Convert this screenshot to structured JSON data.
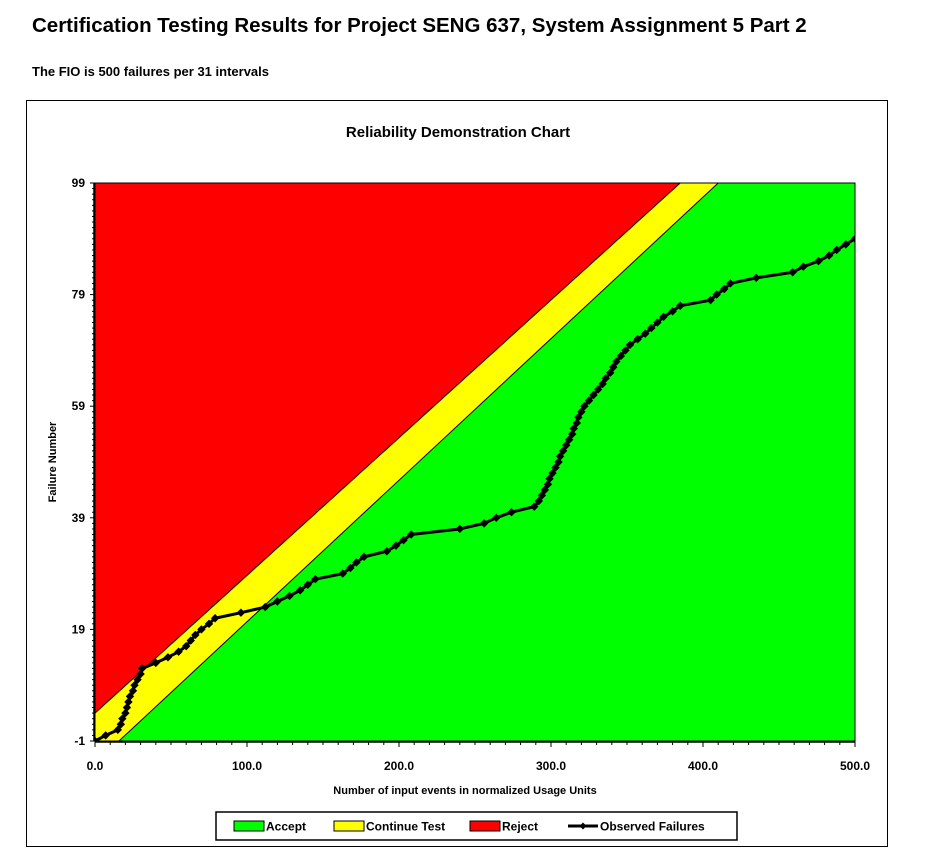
{
  "page": {
    "title": "Certification Testing Results for Project SENG 637, System Assignment 5 Part 2",
    "subtitle": "The FIO is 500 failures per 31 intervals"
  },
  "colors": {
    "reject": "#ff0000",
    "continue": "#ffff00",
    "accept": "#00ff00",
    "observed": "#000000"
  },
  "chart_data": {
    "type": "line",
    "title": "Reliability Demonstration Chart",
    "xlabel": "Number of input events in normalized Usage Units",
    "ylabel": "Failure Number",
    "xlim": [
      0,
      500
    ],
    "ylim": [
      -1,
      99
    ],
    "x_ticks": [
      {
        "value": 0,
        "label": "0.0"
      },
      {
        "value": 100,
        "label": "100.0"
      },
      {
        "value": 200,
        "label": "200.0"
      },
      {
        "value": 300,
        "label": "300.0"
      },
      {
        "value": 400,
        "label": "400.0"
      },
      {
        "value": 500,
        "label": "500.0"
      }
    ],
    "y_ticks": [
      {
        "value": -1,
        "label": "-1"
      },
      {
        "value": 19,
        "label": "19"
      },
      {
        "value": 39,
        "label": "39"
      },
      {
        "value": 59,
        "label": "59"
      },
      {
        "value": 79,
        "label": "79"
      },
      {
        "value": 99,
        "label": "99"
      }
    ],
    "regions": {
      "reject_boundary": [
        [
          0,
          4
        ],
        [
          385,
          99
        ]
      ],
      "accept_boundary": [
        [
          0,
          -5
        ],
        [
          410,
          99
        ]
      ]
    },
    "legend": {
      "placement": "bottom",
      "items": [
        {
          "label": "Accept",
          "color": "#00ff00",
          "kind": "box"
        },
        {
          "label": "Continue Test",
          "color": "#ffff00",
          "kind": "box"
        },
        {
          "label": "Reject",
          "color": "#ff0000",
          "kind": "box"
        },
        {
          "label": "Observed Failures",
          "color": "#000000",
          "kind": "line"
        }
      ]
    },
    "series": [
      {
        "name": "Observed Failures",
        "points": [
          [
            0,
            -1
          ],
          [
            7,
            0
          ],
          [
            15,
            1
          ],
          [
            17,
            2
          ],
          [
            18,
            3
          ],
          [
            20,
            4
          ],
          [
            21,
            5
          ],
          [
            22,
            6
          ],
          [
            23,
            7
          ],
          [
            25,
            8
          ],
          [
            26,
            9
          ],
          [
            28,
            10
          ],
          [
            30,
            11
          ],
          [
            31,
            12
          ],
          [
            40,
            13
          ],
          [
            48,
            14
          ],
          [
            55,
            15
          ],
          [
            60,
            16
          ],
          [
            63,
            17
          ],
          [
            66,
            18
          ],
          [
            70,
            19
          ],
          [
            75,
            20
          ],
          [
            79,
            21
          ],
          [
            96,
            22
          ],
          [
            112,
            23
          ],
          [
            120,
            24
          ],
          [
            128,
            25
          ],
          [
            135,
            26
          ],
          [
            140,
            27
          ],
          [
            145,
            28
          ],
          [
            163,
            29
          ],
          [
            168,
            30
          ],
          [
            172,
            31
          ],
          [
            177,
            32
          ],
          [
            192,
            33
          ],
          [
            198,
            34
          ],
          [
            203,
            35
          ],
          [
            208,
            36
          ],
          [
            240,
            37
          ],
          [
            256,
            38
          ],
          [
            264,
            39
          ],
          [
            274,
            40
          ],
          [
            289,
            41
          ],
          [
            292,
            42
          ],
          [
            294,
            43
          ],
          [
            296,
            44
          ],
          [
            298,
            45
          ],
          [
            299,
            46
          ],
          [
            301,
            47
          ],
          [
            303,
            48
          ],
          [
            305,
            49
          ],
          [
            306,
            50
          ],
          [
            308,
            51
          ],
          [
            310,
            52
          ],
          [
            312,
            53
          ],
          [
            314,
            54
          ],
          [
            315,
            55
          ],
          [
            317,
            56
          ],
          [
            318,
            57
          ],
          [
            320,
            58
          ],
          [
            322,
            59
          ],
          [
            325,
            60
          ],
          [
            328,
            61
          ],
          [
            331,
            62
          ],
          [
            334,
            63
          ],
          [
            336,
            64
          ],
          [
            339,
            65
          ],
          [
            341,
            66
          ],
          [
            343,
            67
          ],
          [
            346,
            68
          ],
          [
            349,
            69
          ],
          [
            352,
            70
          ],
          [
            357,
            71
          ],
          [
            362,
            72
          ],
          [
            366,
            73
          ],
          [
            370,
            74
          ],
          [
            374,
            75
          ],
          [
            380,
            76
          ],
          [
            385,
            77
          ],
          [
            405,
            78
          ],
          [
            409,
            79
          ],
          [
            414,
            80
          ],
          [
            418,
            81
          ],
          [
            435,
            82
          ],
          [
            459,
            83
          ],
          [
            466,
            84
          ],
          [
            476,
            85
          ],
          [
            483,
            86
          ],
          [
            488,
            87
          ],
          [
            494,
            88
          ],
          [
            500,
            89
          ]
        ]
      }
    ]
  }
}
